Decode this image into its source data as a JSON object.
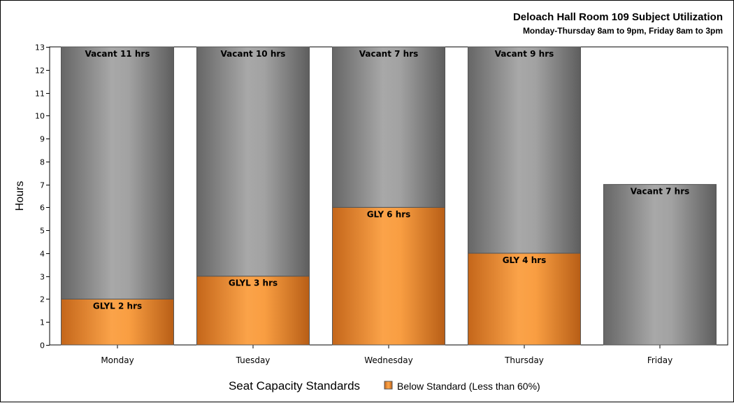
{
  "chart_data": {
    "type": "bar",
    "stacked": true,
    "title": "Deloach Hall Room 109 Subject Utilization",
    "subtitle": "Monday-Thursday 8am to 9pm, Friday 8am to 3pm",
    "xlabel": "",
    "ylabel": "Hours",
    "ylim": [
      0,
      13
    ],
    "yticks": [
      0,
      1,
      2,
      3,
      4,
      5,
      6,
      7,
      8,
      9,
      10,
      11,
      12,
      13
    ],
    "grid": false,
    "categories": [
      "Monday",
      "Tuesday",
      "Wednesday",
      "Thursday",
      "Friday"
    ],
    "series": [
      {
        "values": [
          2,
          3,
          6,
          4,
          0
        ],
        "labels": [
          "GLYL 2 hrs",
          "GLYL 3 hrs",
          "GLY 6 hrs",
          "GLY 4 hrs",
          ""
        ],
        "color": "#f5983a"
      },
      {
        "values": [
          11,
          10,
          7,
          9,
          7
        ],
        "labels": [
          "Vacant 11 hrs",
          "Vacant 10 hrs",
          "Vacant 7 hrs",
          "Vacant 9 hrs",
          "Vacant 7 hrs"
        ],
        "color": "#9a9a9a"
      }
    ],
    "legend": {
      "position": "bottom",
      "title": "Seat Capacity Standards",
      "entries": [
        {
          "label": "Below Standard (Less than 60%)",
          "color": "#f5983a"
        }
      ]
    }
  }
}
